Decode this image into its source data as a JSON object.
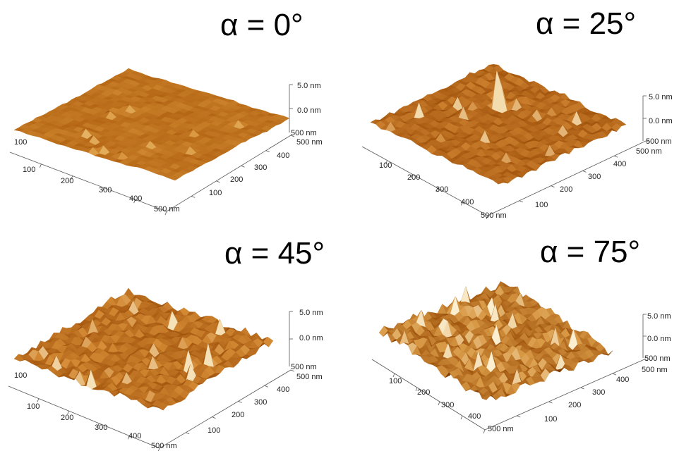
{
  "panels": [
    {
      "id": "p0",
      "title": "α = 0°",
      "x_ticks": [
        "100",
        "200",
        "300",
        "400",
        "500 nm"
      ],
      "y_ticks": [
        "100",
        "200",
        "300",
        "400",
        "500 nm"
      ],
      "side_tick": "100",
      "z_ticks": [
        "5.0 nm",
        "0.0 nm"
      ],
      "z_base": "500 nm",
      "roughness": 0.25,
      "colors": [
        "#7a3a07",
        "#b0600f",
        "#d89238",
        "#f0cd86"
      ]
    },
    {
      "id": "p25",
      "title": "α = 25°",
      "x_ticks": [
        "100",
        "200",
        "300",
        "400",
        "500 nm"
      ],
      "y_ticks": [
        "100",
        "200",
        "300",
        "400",
        "500 nm"
      ],
      "side_tick": "",
      "z_ticks": [
        "5.0 nm",
        "0.0 nm"
      ],
      "z_base": "500 nm",
      "roughness": 0.55,
      "colors": [
        "#6e3206",
        "#a4560d",
        "#cf8330",
        "#f3dcae"
      ]
    },
    {
      "id": "p45",
      "title": "α = 45°",
      "x_ticks": [
        "100",
        "200",
        "300",
        "400",
        "500 nm"
      ],
      "y_ticks": [
        "100",
        "200",
        "300",
        "400",
        "500 nm"
      ],
      "side_tick": "100",
      "z_ticks": [
        "5.0 nm",
        "0.0 nm"
      ],
      "z_base": "500 nm",
      "roughness": 0.8,
      "colors": [
        "#6a3005",
        "#a6580e",
        "#d48a34",
        "#f6e2b8"
      ]
    },
    {
      "id": "p75",
      "title": "α = 75°",
      "x_ticks": [
        "100",
        "200",
        "300",
        "400",
        "500 nm"
      ],
      "y_ticks": [
        "100",
        "200",
        "300",
        "400",
        "500 nm"
      ],
      "side_tick": "",
      "z_ticks": [
        "5.0 nm",
        "0.0 nm"
      ],
      "z_base": "500 nm",
      "roughness": 0.95,
      "colors": [
        "#5a2804",
        "#a0540c",
        "#d99a46",
        "#fbefd0"
      ]
    }
  ]
}
